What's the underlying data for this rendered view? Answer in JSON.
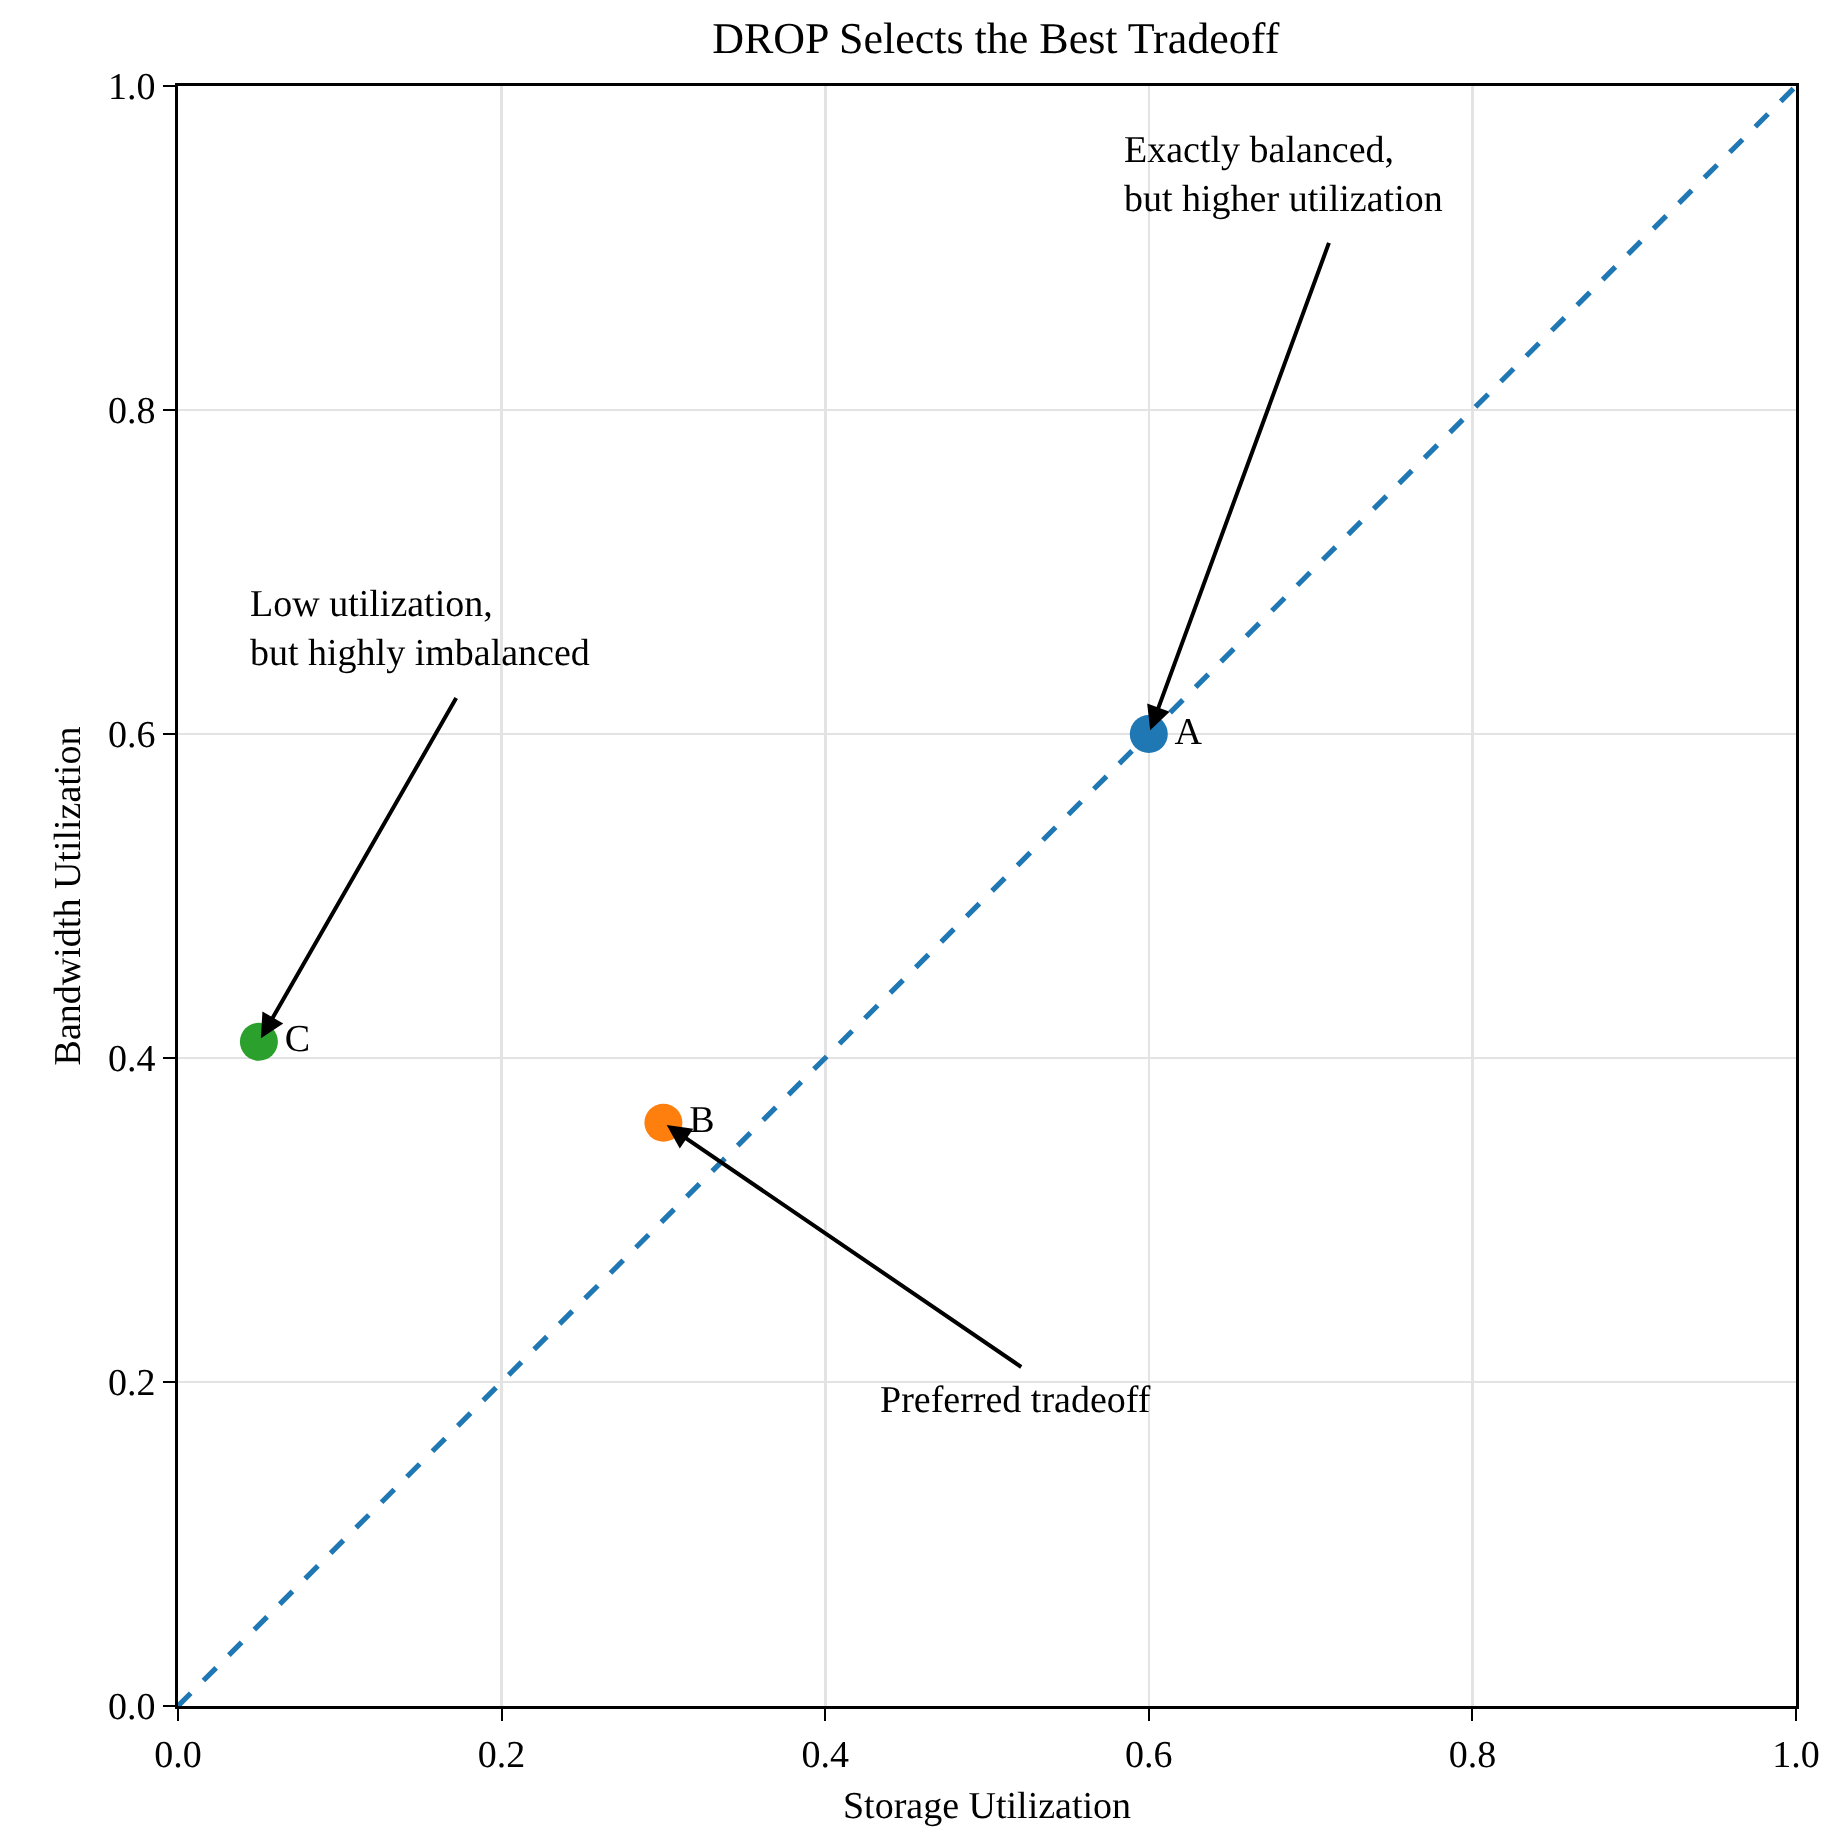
{
  "chart_data": {
    "type": "scatter",
    "title": "DROP Selects the Best Tradeoff",
    "xlabel": "Storage Utilization",
    "ylabel": "Bandwidth Utilization",
    "xlim": [
      0,
      1
    ],
    "ylim": [
      0,
      1
    ],
    "xticks": [
      {
        "value": 0,
        "label": "0.0"
      },
      {
        "value": 0.2,
        "label": "0.2"
      },
      {
        "value": 0.4,
        "label": "0.4"
      },
      {
        "value": 0.6,
        "label": "0.6"
      },
      {
        "value": 0.8,
        "label": "0.8"
      },
      {
        "value": 1,
        "label": "1.0"
      }
    ],
    "yticks": [
      {
        "value": 0,
        "label": "0.0"
      },
      {
        "value": 0.2,
        "label": "0.2"
      },
      {
        "value": 0.4,
        "label": "0.4"
      },
      {
        "value": 0.6,
        "label": "0.6"
      },
      {
        "value": 0.8,
        "label": "0.8"
      },
      {
        "value": 1,
        "label": "1.0"
      }
    ],
    "grid": true,
    "legend": false,
    "marker": "circle",
    "series": [
      {
        "type": "line",
        "line_style": "dashed",
        "marker": "none",
        "color": "#1f77b4",
        "x": [
          0,
          1
        ],
        "values": [
          0,
          1
        ]
      },
      {
        "name": "A",
        "color": "#1f77b4",
        "x": [
          0.6
        ],
        "values": [
          0.6
        ]
      },
      {
        "name": "B",
        "color": "#ff7f0e",
        "x": [
          0.3
        ],
        "values": [
          0.36
        ]
      },
      {
        "name": "C",
        "color": "#2ca02c",
        "x": [
          0.05
        ],
        "values": [
          0.41
        ]
      }
    ],
    "annotations": [
      {
        "text": "Exactly balanced,\nbut higher utilization",
        "x": 0.6,
        "y": 0.6
      },
      {
        "text": "Preferred tradeoff",
        "x": 0.3,
        "y": 0.36
      },
      {
        "text": "Low utilization,\nbut highly imbalanced",
        "x": 0.05,
        "y": 0.41
      }
    ]
  }
}
